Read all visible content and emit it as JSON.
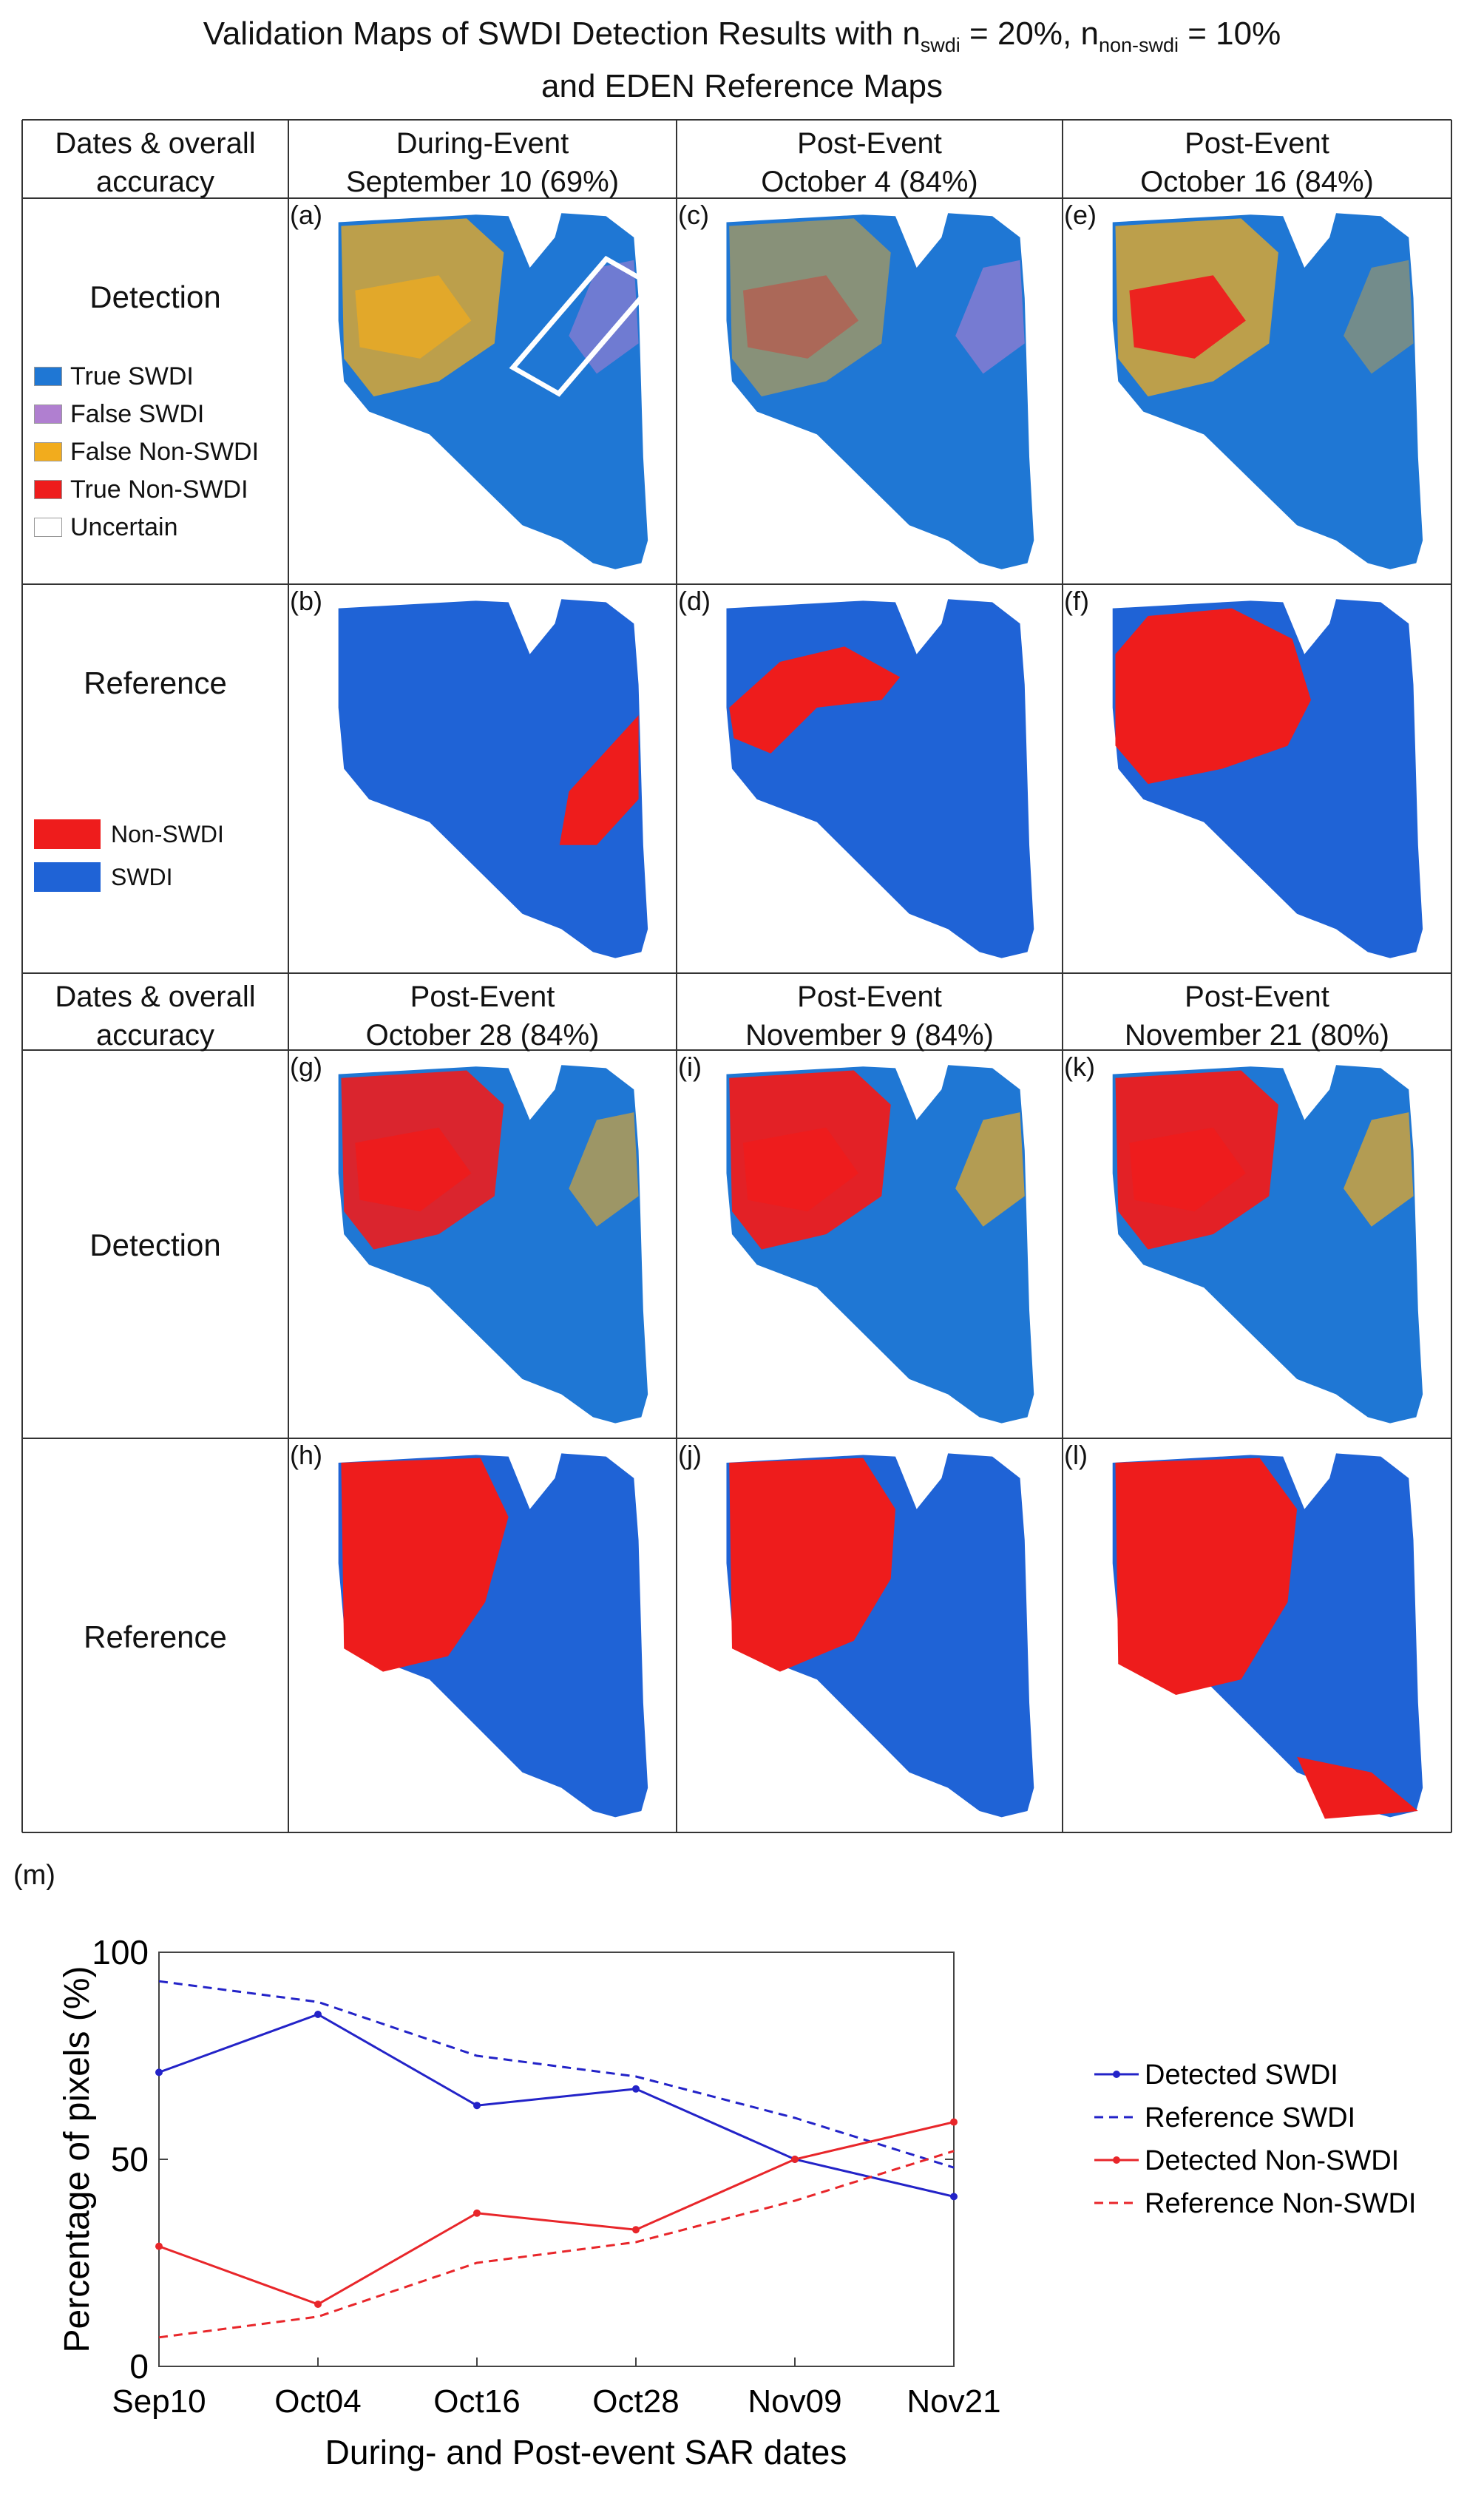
{
  "title": {
    "line1_pre": "Validation Maps of SWDI Detection Results with n",
    "sub1": "swdi",
    "mid": " = 20%, n",
    "sub2": "non-swdi",
    "post": " = 10%",
    "line2": "and EDEN Reference Maps"
  },
  "table": {
    "corner_label_1": "Dates & overall accuracy",
    "corner_label_2": "Dates & overall accuracy",
    "row_detection": "Detection",
    "row_reference": "Reference",
    "columns_top": [
      {
        "phase": "During-Event",
        "date": "September 10 (69%)"
      },
      {
        "phase": "Post-Event",
        "date": "October 4 (84%)"
      },
      {
        "phase": "Post-Event",
        "date": "October 16 (84%)"
      }
    ],
    "columns_bottom": [
      {
        "phase": "Post-Event",
        "date": "October 28 (84%)"
      },
      {
        "phase": "Post-Event",
        "date": "November 9 (84%)"
      },
      {
        "phase": "Post-Event",
        "date": "November 21 (80%)"
      }
    ],
    "panel_labels": [
      "(a)",
      "(c)",
      "(e)",
      "(b)",
      "(d)",
      "(f)",
      "(g)",
      "(i)",
      "(k)",
      "(h)",
      "(j)",
      "(l)"
    ]
  },
  "detection_legend": [
    {
      "label": "True SWDI",
      "color": "#1f77d4"
    },
    {
      "label": "False SWDI",
      "color": "#b07fd0"
    },
    {
      "label": "False Non-SWDI",
      "color": "#f2ac1d"
    },
    {
      "label": "True Non-SWDI",
      "color": "#ee1c1c"
    },
    {
      "label": "Uncertain",
      "color": "#ffffff"
    }
  ],
  "reference_legend": [
    {
      "label": "Non-SWDI",
      "color": "#ee1c1c"
    },
    {
      "label": "SWDI",
      "color": "#1f63d6"
    }
  ],
  "panel_m_label": "(m)",
  "chart_data": {
    "type": "line",
    "categories": [
      "Sep10",
      "Oct04",
      "Oct16",
      "Oct28",
      "Nov09",
      "Nov21"
    ],
    "series": [
      {
        "name": "Detected SWDI",
        "values": [
          71,
          85,
          63,
          67,
          50,
          41
        ],
        "color": "#2323c8",
        "dash": "solid",
        "marker": true
      },
      {
        "name": "Reference SWDI",
        "values": [
          93,
          88,
          75,
          70,
          60,
          48
        ],
        "color": "#2323c8",
        "dash": "dashed",
        "marker": false
      },
      {
        "name": "Detected Non-SWDI",
        "values": [
          29,
          15,
          37,
          33,
          50,
          59
        ],
        "color": "#e8262a",
        "dash": "solid",
        "marker": true
      },
      {
        "name": "Reference Non-SWDI",
        "values": [
          7,
          12,
          25,
          30,
          40,
          52
        ],
        "color": "#e8262a",
        "dash": "dashed",
        "marker": false
      }
    ],
    "xlabel": "During- and Post-event SAR dates",
    "ylabel": "Percentage of pixels (%)",
    "ylim": [
      0,
      100
    ],
    "yticks": [
      0,
      50,
      100
    ],
    "legend_position": "right"
  }
}
